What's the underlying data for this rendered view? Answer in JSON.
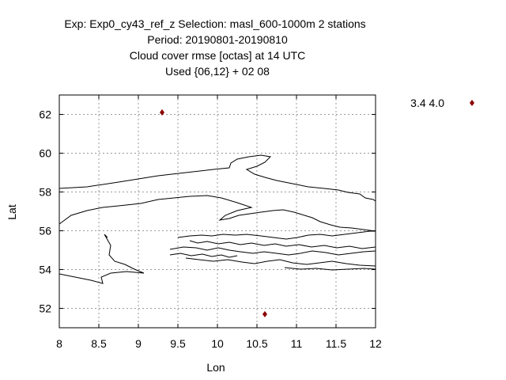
{
  "chart_data": {
    "type": "scatter",
    "title_lines": [
      "Exp: Exp0_cy43_ref_z   Selection: masl_600-1000m       2 stations",
      "Period: 20190801-20190810",
      "Cloud cover rmse [octas] at  14 UTC",
      "Used {06,12} + 02 08"
    ],
    "xlabel": "Lon",
    "ylabel": "Lat",
    "xlim": [
      8,
      12
    ],
    "ylim": [
      51,
      63
    ],
    "xticks": [
      "8",
      "8.5",
      "9",
      "9.5",
      "10",
      "10.5",
      "11",
      "11.5",
      "12"
    ],
    "yticks": [
      "52",
      "54",
      "56",
      "58",
      "60",
      "62"
    ],
    "grid": true,
    "legend_label": "3.4 4.0",
    "point_color": "#8b0000",
    "points": [
      {
        "lon": 9.3,
        "lat": 62.1
      },
      {
        "lon": 10.6,
        "lat": 51.7
      }
    ]
  }
}
